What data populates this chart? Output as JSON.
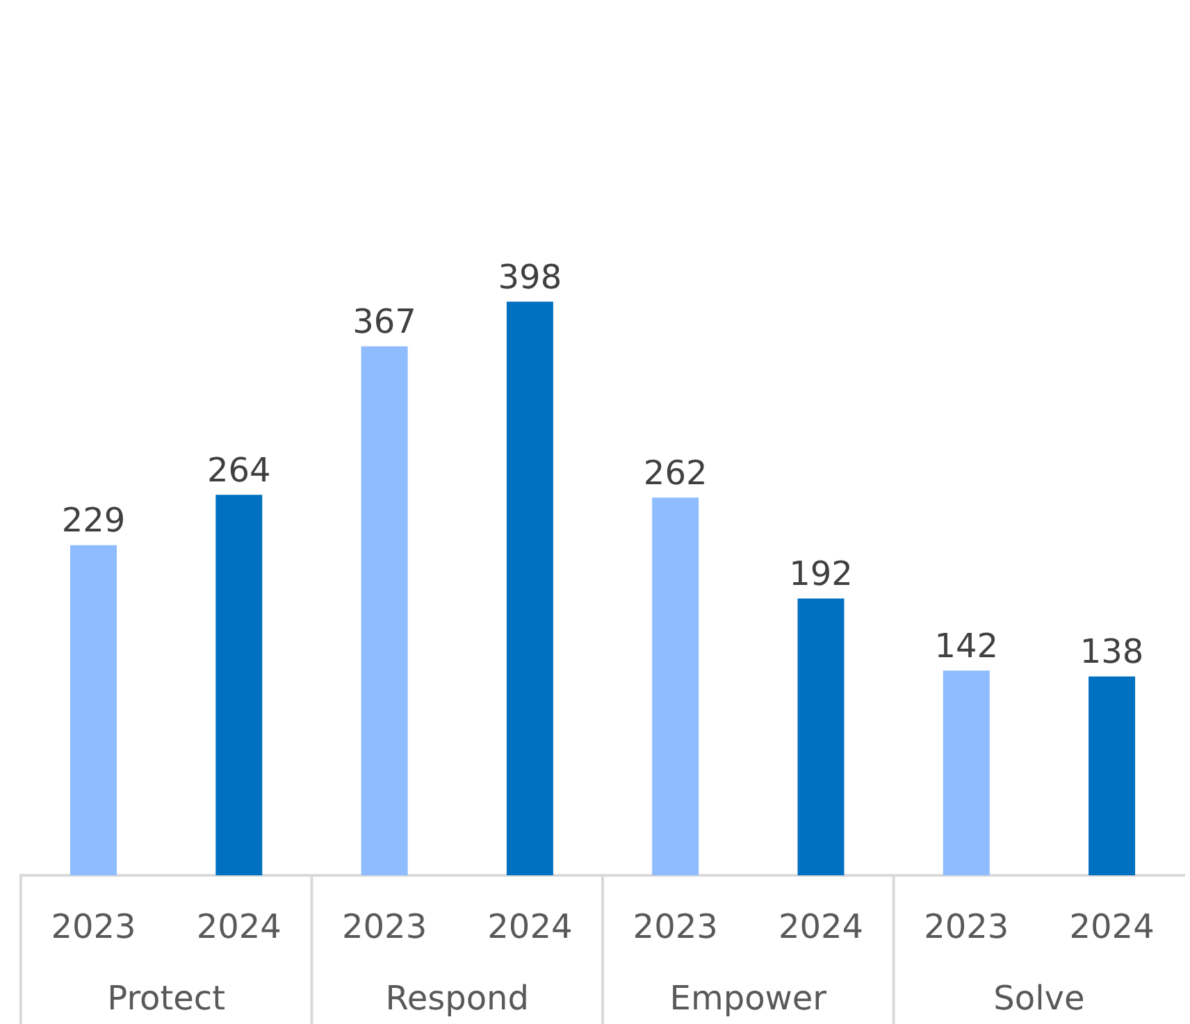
{
  "chart_data": {
    "type": "bar",
    "categories": [
      "Protect",
      "Respond",
      "Empower",
      "Solve"
    ],
    "series": [
      {
        "name": "2023",
        "color": "#8fbcff",
        "values": [
          229,
          367,
          262,
          142
        ]
      },
      {
        "name": "2024",
        "color": "#0070c0",
        "values": [
          264,
          398,
          192,
          138
        ]
      }
    ],
    "data_labels": true
  }
}
